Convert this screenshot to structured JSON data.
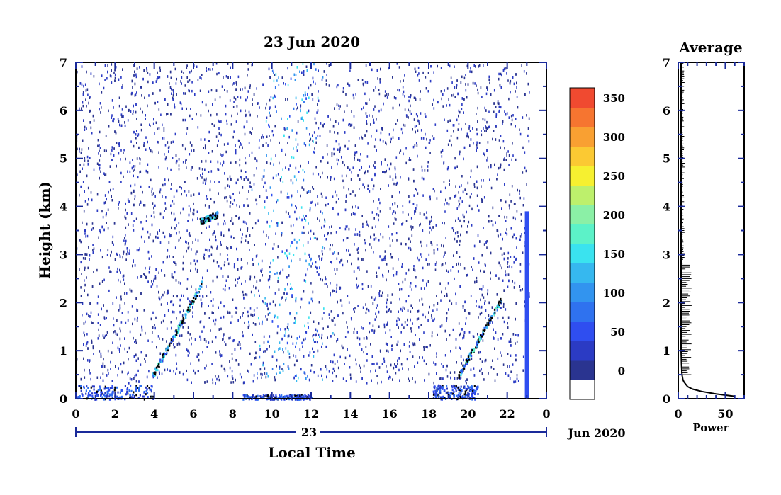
{
  "chart_data": [
    {
      "type": "heatmap",
      "title": "23 Jun 2020",
      "xlabel": "Local Time",
      "ylabel": "Height (km)",
      "xlim": [
        0,
        24
      ],
      "ylim": [
        0,
        7
      ],
      "x_tick_labels": [
        "0",
        "2",
        "4",
        "6",
        "8",
        "10",
        "12",
        "14",
        "16",
        "18",
        "20",
        "22",
        "0"
      ],
      "y_tick_labels": [
        "0",
        "1",
        "2",
        "3",
        "4",
        "5",
        "6",
        "7"
      ],
      "date_axis_label": "23",
      "date_suffix": "Jun 2020",
      "colorbar": {
        "tick_labels": [
          "0",
          "50",
          "100",
          "150",
          "200",
          "250",
          "300",
          "350"
        ],
        "colors": [
          "#ffffff",
          "#2a3490",
          "#2b3bc4",
          "#2f4ef0",
          "#2f72ef",
          "#3294ef",
          "#36b8ef",
          "#3ae3ef",
          "#5cf2c8",
          "#8bf0a6",
          "#bdf06c",
          "#f6f030",
          "#fbc933",
          "#f9a032",
          "#f67530",
          "#f04a30"
        ]
      },
      "features": [
        {
          "kind": "surface_layer",
          "x": [
            0,
            4
          ],
          "height": [
            0,
            0.3
          ]
        },
        {
          "kind": "elevated_layer",
          "x": [
            3.9,
            6.4
          ],
          "height": [
            0.5,
            2.4
          ]
        },
        {
          "kind": "elevated_layer",
          "x": [
            6.3,
            7.2
          ],
          "height": [
            3.7,
            3.85
          ]
        },
        {
          "kind": "surface_layer",
          "x": [
            8.5,
            12
          ],
          "height": [
            0,
            0.1
          ]
        },
        {
          "kind": "surface_layer",
          "x": [
            18.2,
            20.5
          ],
          "height": [
            0,
            0.3
          ]
        },
        {
          "kind": "elevated_layer",
          "x": [
            19.5,
            21.7
          ],
          "height": [
            0.5,
            2.1
          ]
        },
        {
          "kind": "tall_column",
          "x": [
            22.9,
            23.1
          ],
          "height": [
            0,
            3.9
          ]
        }
      ]
    },
    {
      "type": "line",
      "title": "Average",
      "xlabel": "Power",
      "ylabel": "",
      "xlim": [
        0,
        70
      ],
      "ylim": [
        0,
        7
      ],
      "x_tick_labels": [
        "0",
        "50"
      ],
      "y_tick_labels": [
        "0",
        "1",
        "2",
        "3",
        "4",
        "5",
        "6",
        "7"
      ],
      "x": [
        60,
        40,
        25,
        15,
        10,
        8,
        6,
        5,
        4,
        3.5,
        3,
        3,
        3,
        3,
        3,
        3,
        3
      ],
      "y": [
        0.05,
        0.1,
        0.15,
        0.2,
        0.25,
        0.3,
        0.35,
        0.4,
        0.5,
        0.7,
        1,
        2,
        3,
        4,
        5,
        6,
        7
      ]
    }
  ]
}
